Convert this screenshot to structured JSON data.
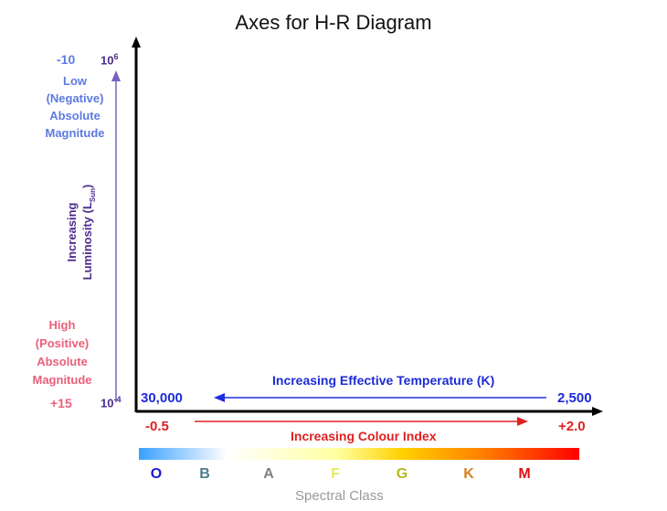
{
  "title": "Axes for H-R Diagram",
  "y_axis": {
    "top_tick": "10",
    "top_tick_exp": "6",
    "bottom_tick": "10",
    "bottom_tick_exp": "-4",
    "label_line1": "Increasing",
    "label_line2": "Luminosity (L",
    "label_sub": "Sun",
    "label_close": ")"
  },
  "magnitude": {
    "top_value": "-10",
    "top_lines": [
      "Low",
      "(Negative)",
      "Absolute",
      "Magnitude"
    ],
    "bottom_lines": [
      "High",
      "(Positive)",
      "Absolute",
      "Magnitude"
    ],
    "bottom_value": "+15"
  },
  "temperature": {
    "left_value": "30,000",
    "right_value": "2,500",
    "label": "Increasing Effective Temperature (K)"
  },
  "colour_index": {
    "left_value": "-0.5",
    "right_value": "+2.0",
    "label": "Increasing Colour Index"
  },
  "spectral": {
    "classes": [
      {
        "letter": "O",
        "color": "#1a1ad0"
      },
      {
        "letter": "B",
        "color": "#4a7c8c"
      },
      {
        "letter": "A",
        "color": "#808080"
      },
      {
        "letter": "F",
        "color": "#e8e860"
      },
      {
        "letter": "G",
        "color": "#b8b820"
      },
      {
        "letter": "K",
        "color": "#d88020"
      },
      {
        "letter": "M",
        "color": "#e01010"
      }
    ],
    "label": "Spectral Class",
    "gradient_stops": [
      "#3aa0ff",
      "#ffffff",
      "#ffffa0",
      "#ffd000",
      "#ff8000",
      "#ff0000"
    ]
  },
  "colors": {
    "axis": "#000000",
    "luminosity_arrow": "#7a60c0",
    "temperature_arrow": "#2030e0",
    "colour_index_arrow": "#e02020"
  }
}
